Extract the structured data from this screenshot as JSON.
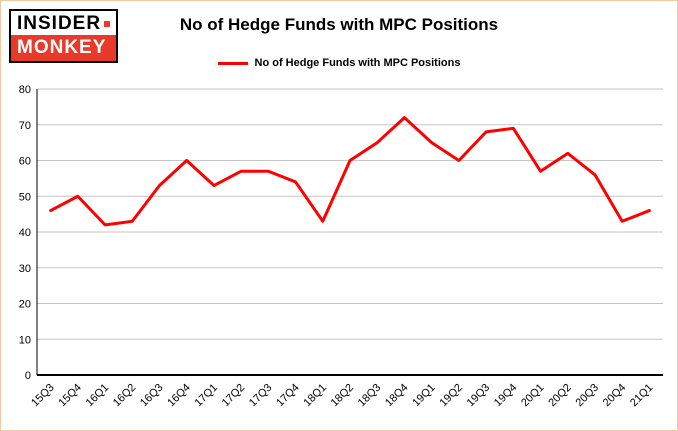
{
  "logo": {
    "top": "INSIDER",
    "bottom": "MONKEY"
  },
  "header": {
    "title": "No of Hedge Funds with MPC Positions"
  },
  "legend": {
    "label": "No of Hedge Funds with MPC Positions"
  },
  "colors": {
    "series_red": "#ff0000",
    "logo_red": "#e8392b",
    "grid_gray": "#c6c6c6",
    "axis_black": "#000000",
    "frame_border": "#f3c9a2"
  },
  "chart_data": {
    "type": "line",
    "title": "No of Hedge Funds with MPC Positions",
    "categories": [
      "15Q3",
      "15Q4",
      "16Q1",
      "16Q2",
      "16Q3",
      "16Q4",
      "17Q1",
      "17Q2",
      "17Q3",
      "17Q4",
      "18Q1",
      "18Q2",
      "18Q3",
      "18Q4",
      "19Q1",
      "19Q2",
      "19Q3",
      "19Q4",
      "20Q1",
      "20Q2",
      "20Q3",
      "20Q4",
      "21Q1"
    ],
    "series": [
      {
        "name": "No of Hedge Funds with MPC Positions",
        "color": "#ff0000",
        "values": [
          46,
          50,
          42,
          43,
          53,
          60,
          53,
          57,
          57,
          54,
          43,
          60,
          65,
          72,
          65,
          60,
          68,
          69,
          57,
          62,
          56,
          43,
          46
        ]
      }
    ],
    "xlabel": "",
    "ylabel": "",
    "ylim": [
      0,
      80
    ],
    "ytick_step": 10,
    "grid": true,
    "legend_position": "top"
  }
}
